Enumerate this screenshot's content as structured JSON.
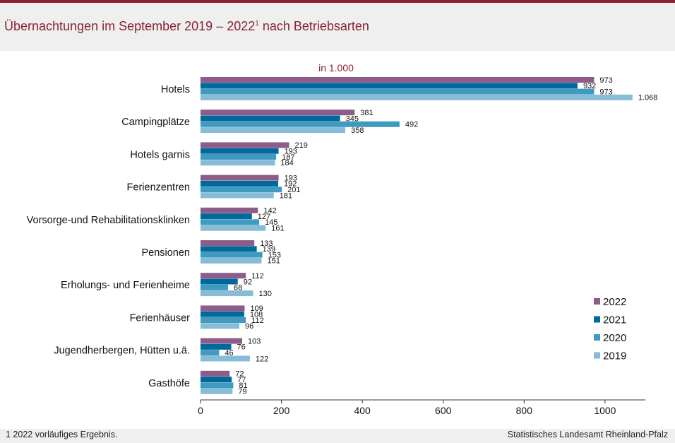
{
  "header": {
    "title_main": "Übernachtungen im September 2019 – 2022",
    "title_sup": "1",
    "title_tail": " nach Betriebsarten"
  },
  "chart_data": {
    "type": "bar",
    "orientation": "horizontal",
    "unit_label": "in 1.000",
    "categories": [
      "Hotels",
      "Campingplätze",
      "Hotels garnis",
      "Ferienzentren",
      "Vorsorge-und Rehabilitationsklinken",
      "Pensionen",
      "Erholungs- und Ferienheime",
      "Ferienhäuser",
      "Jugendherbergen, Hütten u.ä.",
      "Gasthöfe"
    ],
    "series": [
      {
        "name": "2022",
        "color": "#8c5c8a",
        "values": [
          973,
          381,
          219,
          193,
          142,
          133,
          112,
          109,
          103,
          72
        ],
        "labels": [
          "973",
          "381",
          "219",
          "193",
          "142",
          "133",
          "112",
          "109",
          "103",
          "72"
        ]
      },
      {
        "name": "2021",
        "color": "#00689a",
        "values": [
          932,
          345,
          193,
          192,
          127,
          139,
          92,
          108,
          76,
          77
        ],
        "labels": [
          "932",
          "345",
          "193",
          "192",
          "127",
          "139",
          "92",
          "108",
          "76",
          "77"
        ]
      },
      {
        "name": "2020",
        "color": "#3e9bbf",
        "values": [
          973,
          492,
          187,
          201,
          145,
          153,
          68,
          112,
          46,
          81
        ],
        "labels": [
          "973",
          "492",
          "187",
          "201",
          "145",
          "153",
          "68",
          "112",
          "46",
          "81"
        ]
      },
      {
        "name": "2019",
        "color": "#86bcd6",
        "values": [
          1068,
          358,
          184,
          181,
          161,
          151,
          130,
          96,
          122,
          79
        ],
        "labels": [
          "1.068",
          "358",
          "184",
          "181",
          "161",
          "151",
          "130",
          "96",
          "122",
          "79"
        ]
      }
    ],
    "xlim": [
      0,
      1100
    ],
    "xticks": [
      0,
      200,
      400,
      600,
      800,
      1000
    ],
    "legend_order": [
      "2022",
      "2021",
      "2020",
      "2019"
    ],
    "legend_position": "bottom-right"
  },
  "footer": {
    "footnote": "1 2022 vorläufiges Ergebnis.",
    "source": "Statistisches Landesamt Rheinland-Pfalz"
  }
}
